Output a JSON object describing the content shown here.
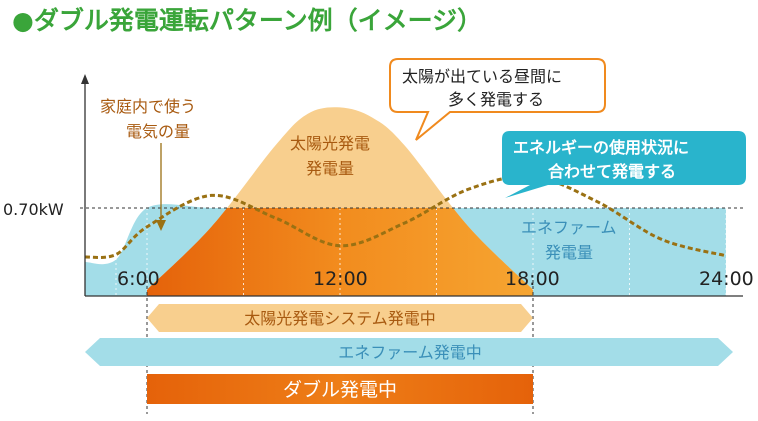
{
  "title": "●ダブル発電運転パターン例（イメージ）",
  "colors": {
    "title": "#3aa53a",
    "solar_fill": "#f8cf8e",
    "ene_fill": "#a3dde8",
    "double_dark": "#e5620a",
    "double_light": "#f6a531",
    "demand_line": "#9a7113",
    "callout_orange": "#f08a1e",
    "callout_blue": "#29b4cc",
    "solar_bar": "#f8cf8e",
    "ene_bar": "#a3dde8"
  },
  "chart_data": {
    "type": "area",
    "title": "●ダブル発電運転パターン例（イメージ）",
    "xlabel": "",
    "ylabel": "",
    "x_ticks": [
      "6:00",
      "12:00",
      "18:00",
      "24:00"
    ],
    "y_ticks": [
      "0.70kW"
    ],
    "annotations": {
      "demand": "家庭内で使う\n電気の量",
      "solar_area": "太陽光発電\n発電量",
      "ene_area": "エネファーム\n発電量"
    },
    "callouts": {
      "solar": "太陽が出ている昼間に\n多く発電する",
      "ene": "エネルギーの使用状況に\n合わせて発電する"
    },
    "periods": {
      "solar": "太陽光発電システム発電中",
      "ene": "エネファーム発電中",
      "double": "ダブル発電中"
    },
    "x_range": [
      0,
      24
    ],
    "series": [
      {
        "name": "エネファーム発電量",
        "x": [
          0,
          3,
          6,
          8,
          10,
          12,
          14,
          16,
          18,
          20,
          22,
          24
        ],
        "values": [
          0.27,
          0.29,
          0.7,
          0.7,
          0.7,
          0.7,
          0.7,
          0.7,
          0.7,
          0.7,
          0.7,
          0.7
        ]
      },
      {
        "name": "太陽光発電発電量",
        "x": [
          6,
          8,
          10,
          11,
          12,
          13,
          14,
          16,
          18
        ],
        "values": [
          0.05,
          0.55,
          1.2,
          1.45,
          1.5,
          1.42,
          1.2,
          0.55,
          0.05
        ]
      },
      {
        "name": "家庭内で使う電気の量",
        "x": [
          0,
          3,
          6,
          8,
          10,
          12,
          14,
          16,
          18,
          20,
          22,
          24
        ],
        "values": [
          0.31,
          0.33,
          0.55,
          0.8,
          0.62,
          0.4,
          0.58,
          0.85,
          0.95,
          0.75,
          0.45,
          0.32
        ]
      }
    ]
  }
}
